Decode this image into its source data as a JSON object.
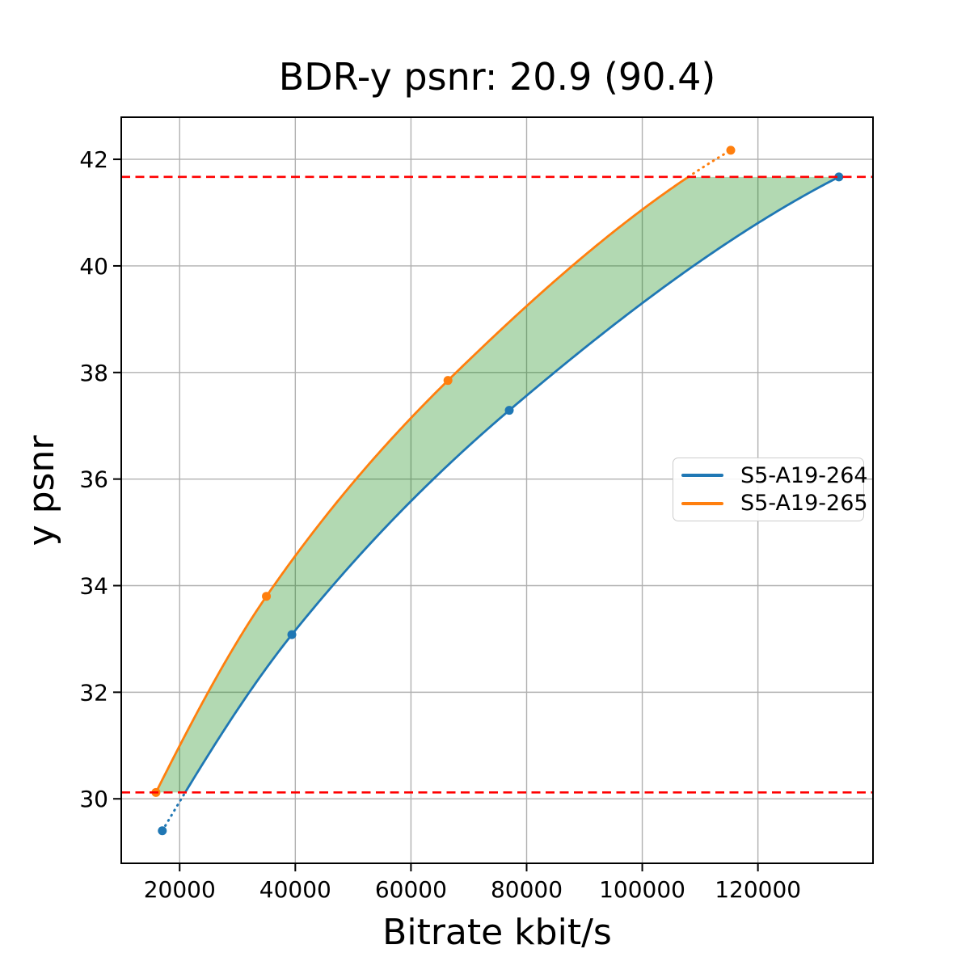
{
  "chart_data": {
    "type": "line",
    "title": "BDR-y psnr: 20.9 (90.4)",
    "xlabel": "Bitrate kbit/s",
    "ylabel": "y psnr",
    "xlim": [
      9900,
      139900
    ],
    "ylim": [
      28.79,
      42.79
    ],
    "xticks": [
      20000,
      40000,
      60000,
      80000,
      100000,
      120000
    ],
    "yticks": [
      30,
      32,
      34,
      36,
      38,
      40,
      42
    ],
    "grid": true,
    "grid_color": "#b0b0b0",
    "series": [
      {
        "name": "S5-A19-264",
        "color": "#1f77b4",
        "x": [
          17000,
          39400,
          77000,
          134000
        ],
        "y": [
          29.4,
          33.08,
          37.29,
          41.67
        ]
      },
      {
        "name": "S5-A19-265",
        "color": "#ff7f0e",
        "x": [
          15900,
          35000,
          66400,
          115300
        ],
        "y": [
          30.12,
          33.8,
          37.85,
          42.17
        ]
      }
    ],
    "overlap_lines": {
      "psnr_low": 30.12,
      "psnr_high": 41.67,
      "color": "#ff0000",
      "style": "dashed"
    },
    "fill_between": {
      "color": "#008000",
      "opacity": 0.3
    },
    "legend_position": "center right"
  }
}
